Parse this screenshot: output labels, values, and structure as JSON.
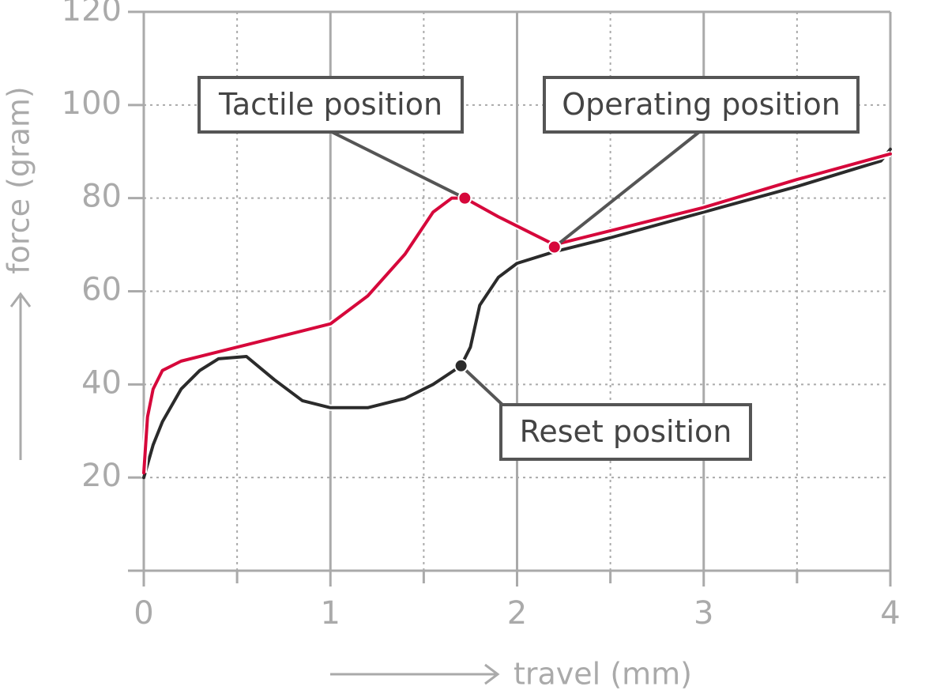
{
  "chart_data": {
    "type": "line",
    "x_label": "travel (mm)",
    "y_label": "force (gram)",
    "xlim": [
      0,
      4
    ],
    "xticks": [
      0,
      1,
      2,
      3,
      4
    ],
    "ylim": [
      0,
      120
    ],
    "yticks": [
      20,
      40,
      60,
      80,
      100,
      120
    ],
    "grid": true,
    "series": [
      {
        "color": "#2b2b2b",
        "x": [
          0,
          0.05,
          0.1,
          0.2,
          0.3,
          0.4,
          0.55,
          0.7,
          0.85,
          1.0,
          1.2,
          1.4,
          1.55,
          1.7,
          1.75,
          1.8,
          1.9,
          2.0,
          2.2,
          2.5,
          3,
          3.5,
          3.95,
          4
        ],
        "values": [
          20,
          27,
          32,
          39,
          43,
          45.5,
          46,
          41,
          36.5,
          35,
          35,
          37,
          40,
          44,
          48,
          57,
          63,
          66,
          68.5,
          71.5,
          77,
          82.5,
          88,
          90.5
        ]
      },
      {
        "color": "#d6083b",
        "x": [
          0,
          0.02,
          0.05,
          0.1,
          0.2,
          0.4,
          0.6,
          0.8,
          1.0,
          1.2,
          1.4,
          1.55,
          1.65,
          1.72,
          1.9,
          2.1,
          2.2,
          2.5,
          3,
          3.5,
          4
        ],
        "values": [
          21,
          33,
          39,
          43,
          45,
          47,
          49,
          51,
          53,
          59,
          68,
          77,
          80,
          80,
          76,
          72,
          70,
          73,
          78,
          84,
          89.5
        ]
      }
    ],
    "annotations": [
      {
        "text": "Tactile position",
        "x": 1.72,
        "y": 80,
        "color": "#d6083b"
      },
      {
        "text": "Operating position",
        "x": 2.2,
        "y": 69.5,
        "color": "#d6083b"
      },
      {
        "text": "Reset position",
        "x": 1.7,
        "y": 44,
        "color": "#2b2b2b"
      }
    ]
  }
}
